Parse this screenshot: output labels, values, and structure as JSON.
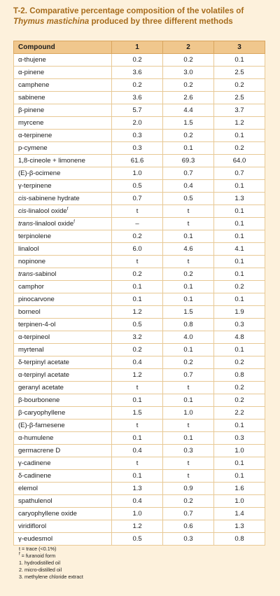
{
  "title": {
    "part1": "T-2. Comparative percentage composition of the volatiles of ",
    "part2": "Thymus mastichina",
    "part3": " produced by three different methods"
  },
  "table": {
    "headers": [
      "Compound",
      "1",
      "2",
      "3"
    ],
    "rows": [
      {
        "name": "α-thujene",
        "v": [
          "0.2",
          "0.2",
          "0.1"
        ]
      },
      {
        "name": "α-pinene",
        "v": [
          "3.6",
          "3.0",
          "2.5"
        ]
      },
      {
        "name": "camphene",
        "v": [
          "0.2",
          "0.2",
          "0.2"
        ]
      },
      {
        "name": "sabinene",
        "v": [
          "3.6",
          "2.6",
          "2.5"
        ]
      },
      {
        "name": "β-pinene",
        "v": [
          "5.7",
          "4.4",
          "3.7"
        ]
      },
      {
        "name": "myrcene",
        "v": [
          "2.0",
          "1.5",
          "1.2"
        ]
      },
      {
        "name": "α-terpinene",
        "v": [
          "0.3",
          "0.2",
          "0.1"
        ]
      },
      {
        "name": "p-cymene",
        "v": [
          "0.3",
          "0.1",
          "0.2"
        ]
      },
      {
        "name": "1,8-cineole + limonene",
        "v": [
          "61.6",
          "69.3",
          "64.0"
        ]
      },
      {
        "name": "(E)-β-ocimene",
        "v": [
          "1.0",
          "0.7",
          "0.7"
        ]
      },
      {
        "name": "γ-terpinene",
        "v": [
          "0.5",
          "0.4",
          "0.1"
        ]
      },
      {
        "prefix": "cis",
        "name": "-sabinene hydrate",
        "v": [
          "0.7",
          "0.5",
          "1.3"
        ]
      },
      {
        "prefix": "cis",
        "name": "-linalool oxide",
        "sup": "f",
        "v": [
          "t",
          "t",
          "0.1"
        ]
      },
      {
        "prefix": "trans",
        "name": "-linalool oxide",
        "sup": "f",
        "v": [
          "–",
          "t",
          "0.1"
        ]
      },
      {
        "name": "terpinolene",
        "v": [
          "0.2",
          "0.1",
          "0.1"
        ]
      },
      {
        "name": "linalool",
        "v": [
          "6.0",
          "4.6",
          "4.1"
        ]
      },
      {
        "name": "nopinone",
        "v": [
          "t",
          "t",
          "0.1"
        ]
      },
      {
        "prefix": "trans",
        "name": "-sabinol",
        "v": [
          "0.2",
          "0.2",
          "0.1"
        ]
      },
      {
        "name": "camphor",
        "v": [
          "0.1",
          "0.1",
          "0.2"
        ]
      },
      {
        "name": "pinocarvone",
        "v": [
          "0.1",
          "0.1",
          "0.1"
        ]
      },
      {
        "name": "borneol",
        "v": [
          "1.2",
          "1.5",
          "1.9"
        ]
      },
      {
        "name": "terpinen-4-ol",
        "v": [
          "0.5",
          "0.8",
          "0.3"
        ]
      },
      {
        "name": "α-terpineol",
        "v": [
          "3.2",
          "4.0",
          "4.8"
        ]
      },
      {
        "name": "myrtenal",
        "v": [
          "0.2",
          "0.1",
          "0.1"
        ]
      },
      {
        "name": "δ-terpinyl acetate",
        "v": [
          "0.4",
          "0.2",
          "0.2"
        ]
      },
      {
        "name": "α-terpinyl acetate",
        "v": [
          "1.2",
          "0.7",
          "0.8"
        ]
      },
      {
        "name": "geranyl acetate",
        "v": [
          "t",
          "t",
          "0.2"
        ]
      },
      {
        "name": "β-bourbonene",
        "v": [
          "0.1",
          "0.1",
          "0.2"
        ]
      },
      {
        "name": "β-caryophyllene",
        "v": [
          "1.5",
          "1.0",
          "2.2"
        ]
      },
      {
        "name": "(E)-β-farnesene",
        "v": [
          "t",
          "t",
          "0.1"
        ]
      },
      {
        "name": "α-humulene",
        "v": [
          "0.1",
          "0.1",
          "0.3"
        ]
      },
      {
        "name": "germacrene D",
        "v": [
          "0.4",
          "0.3",
          "1.0"
        ]
      },
      {
        "name": "γ-cadinene",
        "v": [
          "t",
          "t",
          "0.1"
        ]
      },
      {
        "name": "δ-cadinene",
        "v": [
          "0.1",
          "t",
          "0.1"
        ]
      },
      {
        "name": "elemol",
        "v": [
          "1.3",
          "0.9",
          "1.6"
        ]
      },
      {
        "name": "spathulenol",
        "v": [
          "0.4",
          "0.2",
          "1.0"
        ]
      },
      {
        "name": "caryophyllene oxide",
        "v": [
          "1.0",
          "0.7",
          "1.4"
        ]
      },
      {
        "name": "viridiflorol",
        "v": [
          "1.2",
          "0.6",
          "1.3"
        ]
      },
      {
        "name": "γ-eudesmol",
        "v": [
          "0.5",
          "0.3",
          "0.8"
        ]
      }
    ]
  },
  "notes": {
    "trace": "t = trace (<0.1%)",
    "furanoid_sup": "f",
    "furanoid": " = furanoid form",
    "method1": "1. hydrodistilled oil",
    "method2": "2. micro-distilled oil",
    "method3": "3. methylene chloride extract"
  },
  "colors": {
    "panel_background": "#fdf1dc",
    "header_background": "#f0c78d",
    "title_color": "#a66c1c",
    "rule_color": "#e8c995"
  }
}
